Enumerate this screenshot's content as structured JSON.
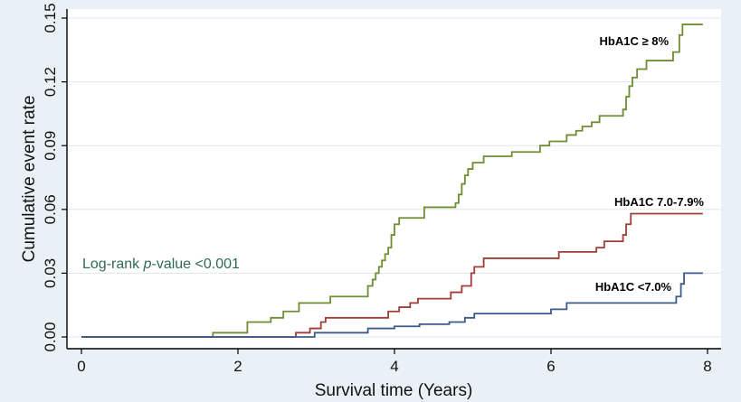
{
  "chart_data": {
    "type": "line",
    "step": true,
    "xlabel": "Survival time (Years)",
    "ylabel": "Cumulative event rate",
    "xlim": [
      0,
      8
    ],
    "ylim": [
      0,
      0.15
    ],
    "xticks": [
      0,
      2,
      4,
      6,
      8
    ],
    "yticks": [
      0,
      0.03,
      0.06,
      0.09,
      0.12,
      0.15
    ],
    "ytick_labels": [
      "0.00",
      "0.03",
      "0.06",
      "0.09",
      "0.12",
      "0.15"
    ],
    "grid": "horizontal",
    "annotation": {
      "prefix": "Log-rank ",
      "italic": "p",
      "suffix": "-value <0.001",
      "color": "#2e6b55"
    },
    "series": [
      {
        "name": "HbA1C ≥ 8%",
        "color": "#6f8d33",
        "points": [
          [
            0,
            0
          ],
          [
            1.68,
            0.002
          ],
          [
            2.12,
            0.007
          ],
          [
            2.42,
            0.009
          ],
          [
            2.58,
            0.012
          ],
          [
            2.78,
            0.016
          ],
          [
            3.18,
            0.019
          ],
          [
            3.66,
            0.024
          ],
          [
            3.72,
            0.027
          ],
          [
            3.76,
            0.03
          ],
          [
            3.8,
            0.033
          ],
          [
            3.84,
            0.036
          ],
          [
            3.88,
            0.039
          ],
          [
            3.92,
            0.042
          ],
          [
            3.96,
            0.048
          ],
          [
            4.0,
            0.053
          ],
          [
            4.06,
            0.056
          ],
          [
            4.38,
            0.061
          ],
          [
            4.78,
            0.063
          ],
          [
            4.82,
            0.067
          ],
          [
            4.86,
            0.072
          ],
          [
            4.9,
            0.076
          ],
          [
            4.94,
            0.079
          ],
          [
            5.0,
            0.082
          ],
          [
            5.14,
            0.085
          ],
          [
            5.5,
            0.087
          ],
          [
            5.86,
            0.09
          ],
          [
            5.98,
            0.092
          ],
          [
            6.2,
            0.095
          ],
          [
            6.32,
            0.097
          ],
          [
            6.4,
            0.099
          ],
          [
            6.52,
            0.101
          ],
          [
            6.62,
            0.104
          ],
          [
            6.92,
            0.107
          ],
          [
            6.96,
            0.113
          ],
          [
            7.0,
            0.118
          ],
          [
            7.04,
            0.122
          ],
          [
            7.1,
            0.126
          ],
          [
            7.22,
            0.13
          ],
          [
            7.56,
            0.134
          ],
          [
            7.64,
            0.142
          ],
          [
            7.68,
            0.147
          ],
          [
            7.94,
            0.147
          ]
        ]
      },
      {
        "name": "HbA1C 7.0-7.9%",
        "color": "#a13c36",
        "points": [
          [
            0,
            0
          ],
          [
            2.74,
            0.002
          ],
          [
            2.92,
            0.004
          ],
          [
            3.06,
            0.007
          ],
          [
            3.12,
            0.009
          ],
          [
            3.92,
            0.012
          ],
          [
            4.06,
            0.014
          ],
          [
            4.2,
            0.016
          ],
          [
            4.3,
            0.018
          ],
          [
            4.72,
            0.021
          ],
          [
            4.86,
            0.024
          ],
          [
            4.98,
            0.03
          ],
          [
            5.02,
            0.033
          ],
          [
            5.14,
            0.037
          ],
          [
            6.1,
            0.04
          ],
          [
            6.58,
            0.042
          ],
          [
            6.68,
            0.045
          ],
          [
            6.92,
            0.048
          ],
          [
            6.96,
            0.053
          ],
          [
            7.02,
            0.058
          ],
          [
            7.94,
            0.058
          ]
        ]
      },
      {
        "name": "HbA1C <7.0%",
        "color": "#3d5a8a",
        "points": [
          [
            0,
            0
          ],
          [
            2.98,
            0.002
          ],
          [
            3.66,
            0.004
          ],
          [
            4.0,
            0.005
          ],
          [
            4.32,
            0.006
          ],
          [
            4.7,
            0.007
          ],
          [
            4.9,
            0.009
          ],
          [
            5.02,
            0.011
          ],
          [
            6.0,
            0.013
          ],
          [
            6.2,
            0.016
          ],
          [
            7.6,
            0.019
          ],
          [
            7.66,
            0.025
          ],
          [
            7.7,
            0.03
          ],
          [
            7.94,
            0.03
          ]
        ]
      }
    ]
  }
}
